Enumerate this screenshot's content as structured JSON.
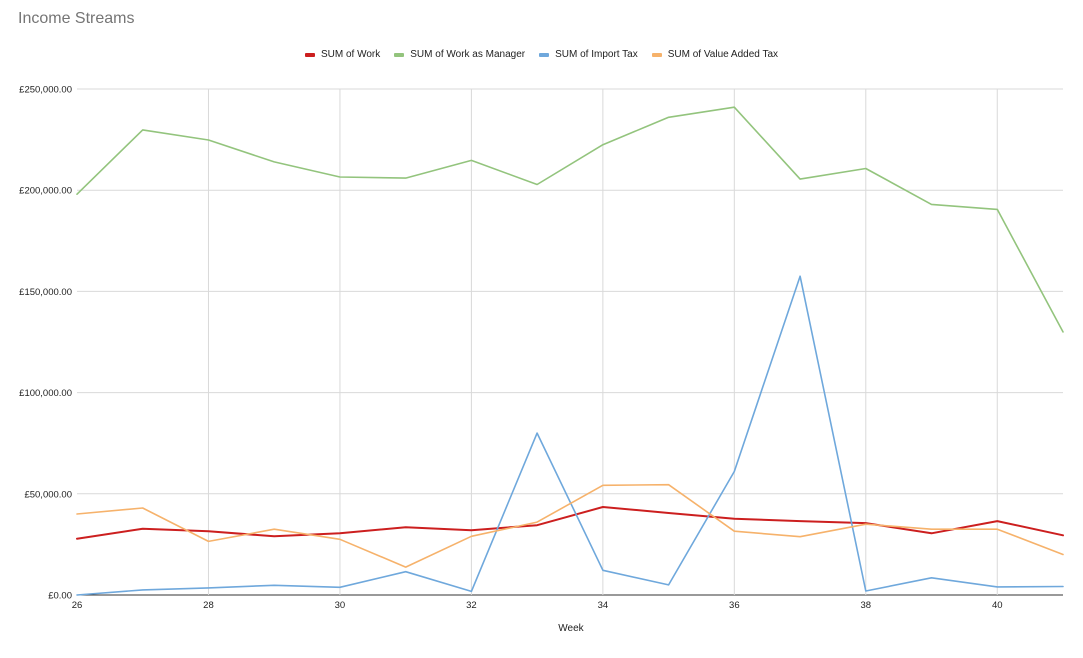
{
  "chart_data": {
    "type": "line",
    "title": "Income Streams",
    "xlabel": "Week",
    "ylabel": "",
    "x": [
      26,
      27,
      28,
      29,
      30,
      31,
      32,
      33,
      34,
      35,
      36,
      37,
      38,
      39,
      40,
      41
    ],
    "xlim": [
      26,
      41
    ],
    "x_ticks": [
      26,
      28,
      30,
      32,
      34,
      36,
      38,
      40
    ],
    "ylim": [
      0,
      250000
    ],
    "y_ticks": [
      0,
      50000,
      100000,
      150000,
      200000,
      250000
    ],
    "y_tick_labels": [
      "£0.00",
      "£50,000.00",
      "£100,000.00",
      "£150,000.00",
      "£200,000.00",
      "£250,000.00"
    ],
    "grid": true,
    "legend_position": "top",
    "series": [
      {
        "name": "SUM of Work",
        "color": "#cc1f1f",
        "values": [
          27800,
          32700,
          31500,
          29000,
          30500,
          33500,
          32000,
          34500,
          43500,
          40500,
          37700,
          36500,
          35500,
          30500,
          36500,
          29500
        ]
      },
      {
        "name": "SUM of Work as Manager",
        "color": "#93c47d",
        "values": [
          198000,
          229800,
          224800,
          214000,
          206500,
          206000,
          214700,
          202800,
          222500,
          236000,
          241000,
          205500,
          210700,
          193000,
          190500,
          130000
        ]
      },
      {
        "name": "SUM of Import Tax",
        "color": "#6fa8dc",
        "values": [
          0,
          2500,
          3500,
          4800,
          3800,
          11500,
          1800,
          80000,
          12200,
          5000,
          61000,
          157500,
          2000,
          8500,
          4000,
          4200
        ]
      },
      {
        "name": "SUM of Value Added Tax",
        "color": "#f6b26b",
        "values": [
          40000,
          43000,
          26500,
          32500,
          27500,
          13800,
          29000,
          36000,
          54200,
          54500,
          31500,
          28800,
          35000,
          32500,
          32500,
          20000
        ]
      }
    ]
  }
}
